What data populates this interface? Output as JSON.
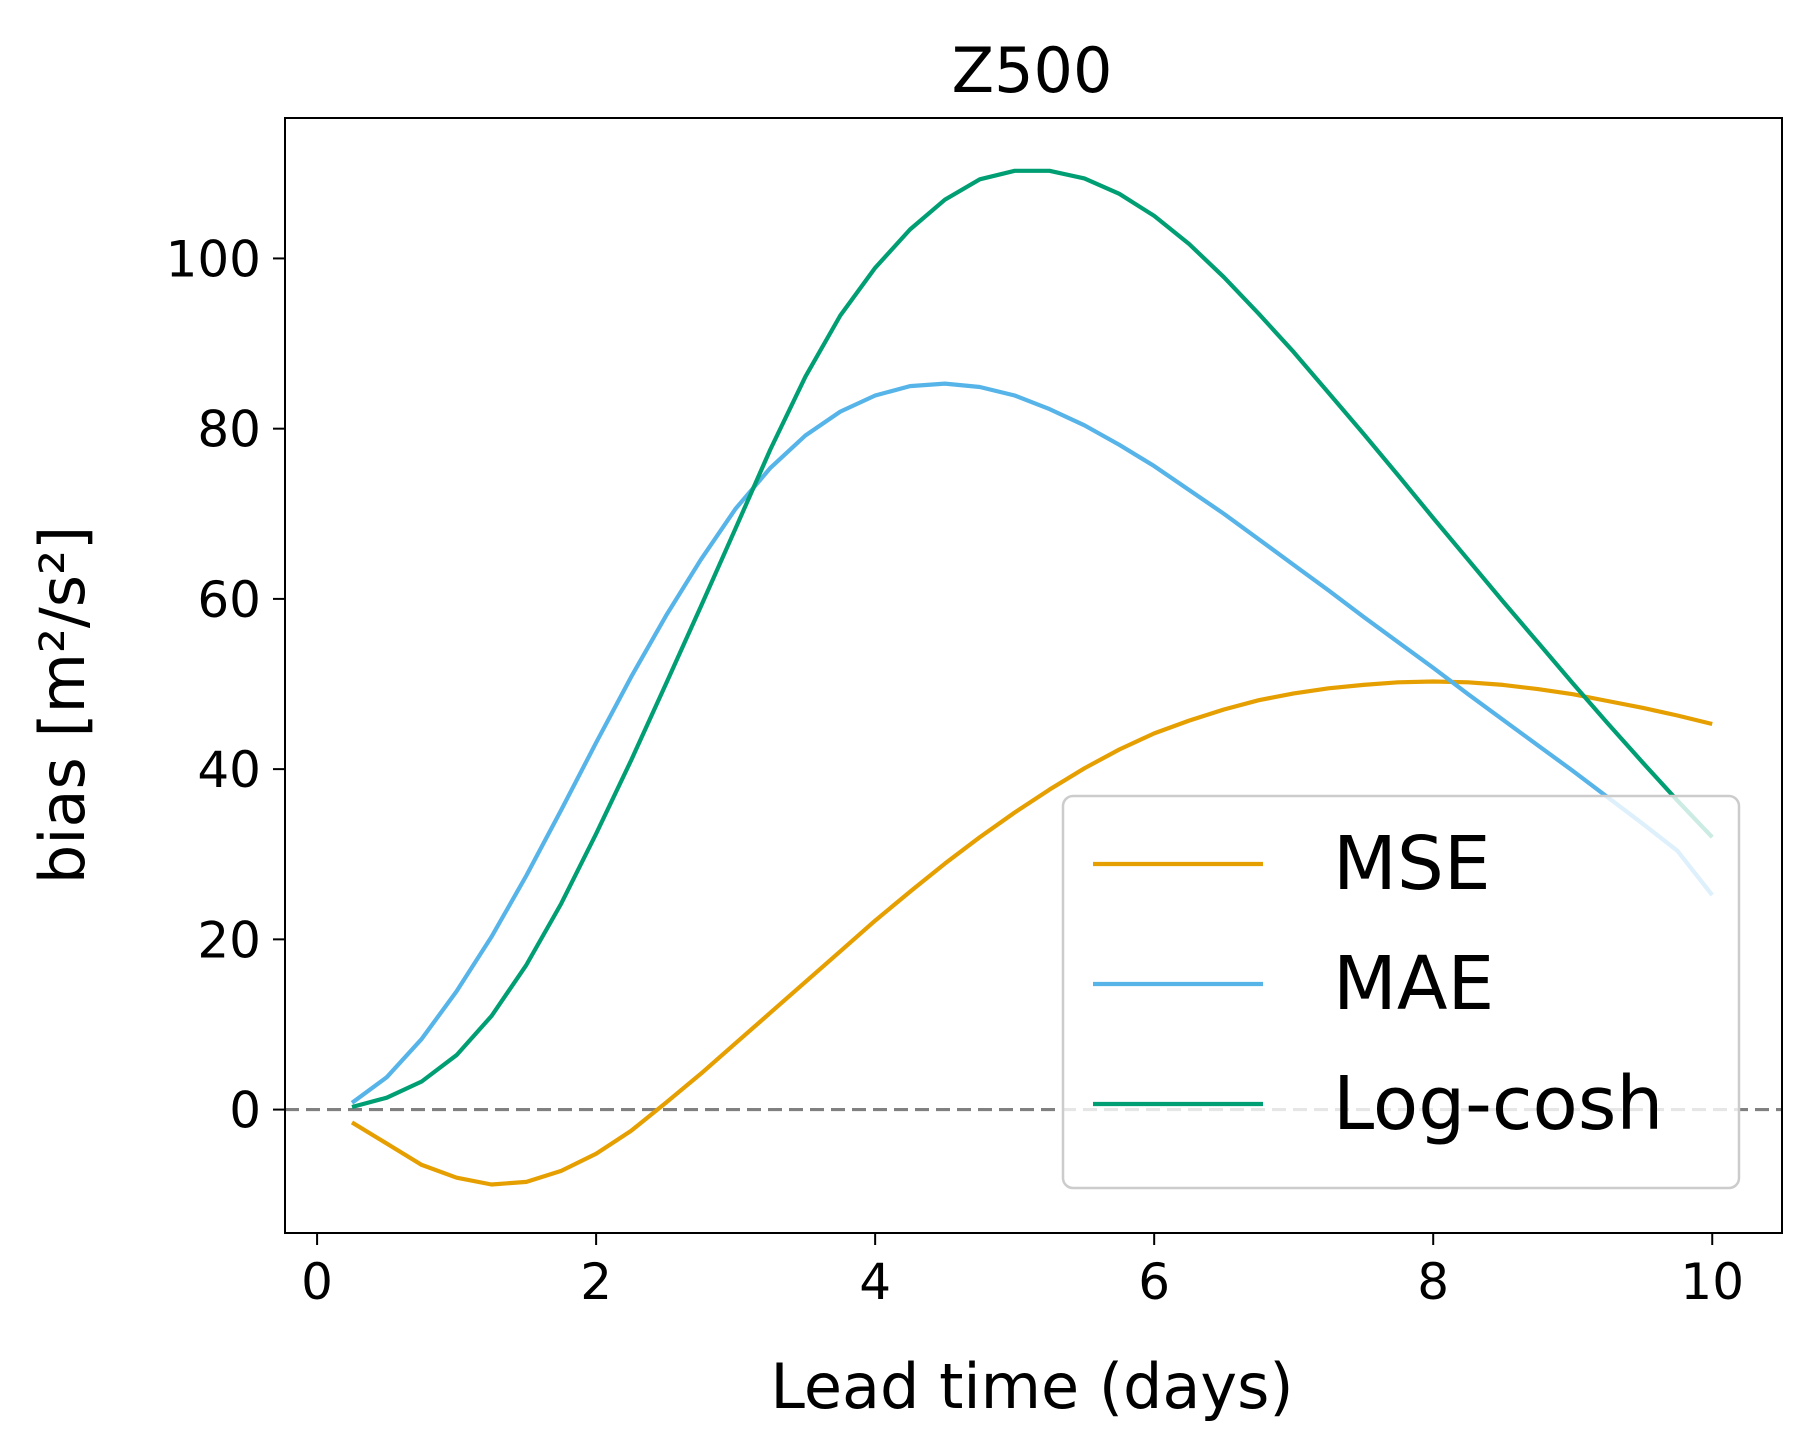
{
  "chart_data": {
    "type": "line",
    "title": "Z500",
    "xlabel": "Lead time (days)",
    "ylabel": "bias [m²/s²]",
    "xlim": [
      -0.23,
      10.5
    ],
    "ylim": [
      -14.5,
      116.5
    ],
    "xticks": [
      0,
      2,
      4,
      6,
      8,
      10
    ],
    "yticks": [
      0,
      20,
      40,
      60,
      80,
      100
    ],
    "grid": false,
    "legend_position": "lower-right",
    "reference_line": {
      "y": 0,
      "style": "dashed",
      "color": "#808080"
    },
    "x": [
      0.25,
      0.5,
      0.75,
      1.0,
      1.25,
      1.5,
      1.75,
      2.0,
      2.25,
      2.5,
      2.75,
      3.0,
      3.25,
      3.5,
      3.75,
      4.0,
      4.25,
      4.5,
      4.75,
      5.0,
      5.25,
      5.5,
      5.75,
      6.0,
      6.25,
      6.5,
      6.75,
      7.0,
      7.25,
      7.5,
      7.75,
      8.0,
      8.25,
      8.5,
      8.75,
      9.0,
      9.25,
      9.5,
      9.75,
      10.0
    ],
    "series": [
      {
        "name": "MSE",
        "color": "#E69F00",
        "values": [
          -1.5,
          -4.0,
          -6.5,
          -8.0,
          -8.8,
          -8.5,
          -7.2,
          -5.2,
          -2.5,
          0.8,
          4.2,
          7.8,
          11.4,
          15.0,
          18.6,
          22.2,
          25.6,
          28.9,
          32.0,
          34.9,
          37.6,
          40.1,
          42.3,
          44.2,
          45.7,
          47.0,
          48.1,
          48.9,
          49.5,
          49.9,
          50.2,
          50.3,
          50.2,
          49.9,
          49.4,
          48.8,
          48.0,
          47.2,
          46.3,
          45.3
        ]
      },
      {
        "name": "MAE",
        "color": "#56B4E9",
        "values": [
          0.8,
          3.8,
          8.3,
          13.9,
          20.3,
          27.5,
          35.2,
          43.1,
          50.8,
          58.0,
          64.6,
          70.6,
          75.4,
          79.2,
          82.0,
          83.9,
          85.0,
          85.3,
          84.9,
          83.9,
          82.3,
          80.4,
          78.1,
          75.6,
          72.8,
          70.0,
          67.0,
          64.0,
          61.0,
          57.9,
          54.9,
          51.9,
          48.8,
          45.8,
          42.8,
          39.8,
          36.7,
          33.6,
          30.4,
          25.2
        ]
      },
      {
        "name": "Log-cosh",
        "color": "#009E73",
        "values": [
          0.3,
          1.4,
          3.3,
          6.4,
          11.0,
          17.0,
          24.2,
          32.4,
          41.0,
          50.0,
          59.1,
          68.3,
          77.6,
          86.1,
          93.3,
          98.9,
          103.4,
          106.9,
          109.3,
          110.3,
          110.3,
          109.4,
          107.6,
          105.0,
          101.7,
          97.8,
          93.5,
          89.0,
          84.2,
          79.4,
          74.5,
          69.5,
          64.6,
          59.7,
          54.9,
          50.1,
          45.4,
          40.8,
          36.3,
          32.0
        ]
      }
    ]
  }
}
